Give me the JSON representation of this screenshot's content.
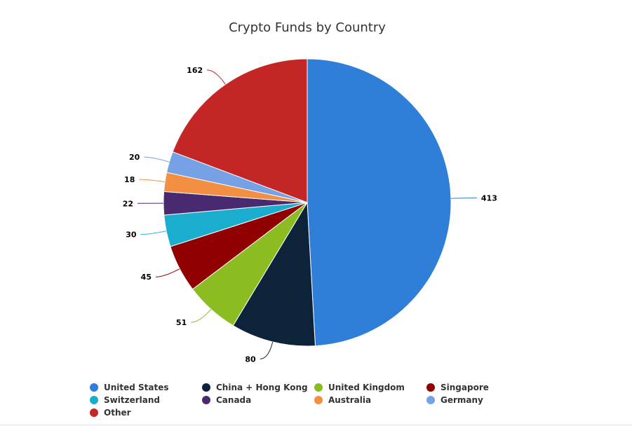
{
  "chart_data": {
    "type": "pie",
    "title": "Crypto Funds by Country",
    "start_angle_deg": 0,
    "slices": [
      {
        "label": "United States",
        "value": 413,
        "color": "#2f7ed8"
      },
      {
        "label": "China + Hong Kong",
        "value": 80,
        "color": "#0d233a"
      },
      {
        "label": "United Kingdom",
        "value": 51,
        "color": "#8bbc21"
      },
      {
        "label": "Singapore",
        "value": 45,
        "color": "#910000"
      },
      {
        "label": "Switzerland",
        "value": 30,
        "color": "#1aadce"
      },
      {
        "label": "Canada",
        "value": 22,
        "color": "#492970"
      },
      {
        "label": "Australia",
        "value": 18,
        "color": "#f28f43"
      },
      {
        "label": "Germany",
        "value": 20,
        "color": "#77a1e5"
      },
      {
        "label": "Other",
        "value": 162,
        "color": "#c42525"
      }
    ],
    "legend_position": "bottom",
    "data_labels": true
  }
}
